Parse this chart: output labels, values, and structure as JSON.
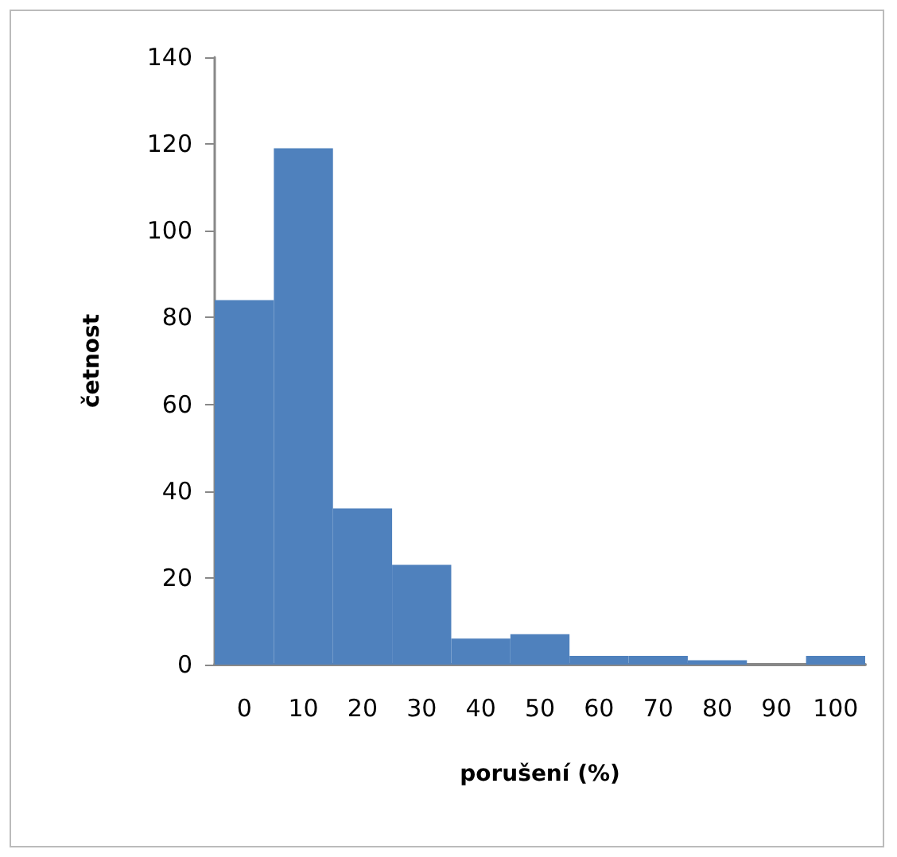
{
  "chart_data": {
    "type": "bar",
    "xlabel": "porušení (%)",
    "ylabel": "četnost",
    "categories": [
      "0",
      "10",
      "20",
      "30",
      "40",
      "50",
      "60",
      "70",
      "80",
      "90",
      "100"
    ],
    "values": [
      84,
      119,
      36,
      23,
      6,
      7,
      2,
      2,
      1,
      0,
      2
    ],
    "color": "#4f81bd",
    "ylim": [
      0,
      140
    ],
    "yticks": [
      0,
      20,
      40,
      60,
      80,
      100,
      120,
      140
    ],
    "grid": false
  }
}
